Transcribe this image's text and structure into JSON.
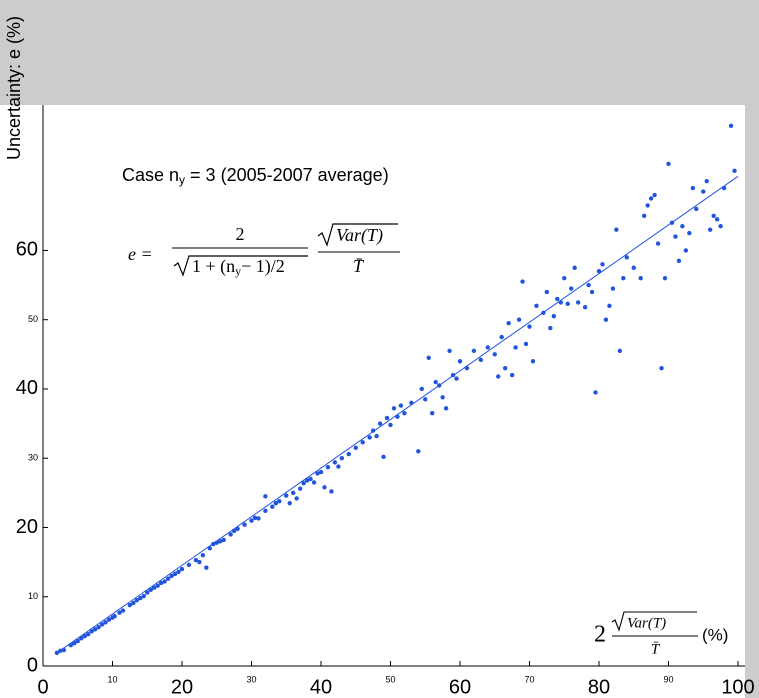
{
  "chart_data": {
    "type": "scatter",
    "ylabel": "Uncertainty: e (%)",
    "case_label": [
      "Case n",
      "y",
      " = 3 (2005-2007 average)"
    ],
    "formula": {
      "lhs": "e =",
      "num": "2",
      "den": [
        "1 + (n",
        "y",
        "− 1)/2"
      ],
      "var": "Var(T)",
      "mean": "T̄"
    },
    "xlabel": {
      "coef": "2",
      "var": "Var(T)",
      "mean": "T̄",
      "unit": "(%)"
    },
    "color": "#2255dd",
    "xlim": [
      0,
      100
    ],
    "ylim": [
      0,
      81
    ],
    "xticks": [
      0,
      10,
      20,
      30,
      40,
      50,
      60,
      70,
      80,
      90,
      100
    ],
    "yticks": [
      0,
      10,
      20,
      30,
      40,
      50,
      60
    ],
    "fit": {
      "x": [
        2,
        100
      ],
      "y": [
        1.9,
        70.7
      ]
    },
    "x": [
      2,
      2.5,
      3,
      4,
      4.5,
      5,
      5.5,
      6,
      6.5,
      7,
      7.5,
      8,
      8.5,
      9,
      9.5,
      10,
      10.3,
      11,
      11.5,
      12.5,
      13,
      13.5,
      14,
      14.5,
      15,
      15.5,
      16,
      16.5,
      17,
      17.5,
      18,
      18.5,
      19,
      19.5,
      20,
      21,
      22,
      22.5,
      23,
      23.5,
      24,
      24.5,
      25,
      25.5,
      26,
      27,
      27.5,
      28,
      29,
      30,
      30.5,
      31,
      32,
      32,
      33,
      33.5,
      34,
      35,
      35.5,
      36,
      36.5,
      37,
      37.5,
      38,
      38.5,
      39,
      39.5,
      40,
      40.5,
      41,
      41.5,
      42,
      42.5,
      43,
      44,
      45,
      46,
      47,
      47.5,
      48,
      48.5,
      49,
      49.5,
      50,
      50.5,
      51,
      51.5,
      52,
      53,
      54,
      54.5,
      55,
      55.5,
      56,
      56.5,
      57,
      57.5,
      58,
      58.5,
      59,
      59.5,
      60,
      61,
      62,
      63,
      64,
      65,
      65.5,
      66,
      66.5,
      67,
      67.5,
      68,
      68.5,
      69,
      69.5,
      70,
      70.5,
      71,
      72,
      72.5,
      73,
      73.5,
      74,
      74.5,
      75,
      75.5,
      76,
      76.5,
      77,
      78,
      78.5,
      79,
      79.5,
      80,
      80.5,
      81,
      81.5,
      82,
      82.5,
      83,
      83.5,
      84,
      85,
      86,
      86.5,
      87,
      87.5,
      88,
      88.5,
      89,
      89.5,
      90,
      90.5,
      91,
      91.5,
      92,
      92.5,
      93,
      93.5,
      94,
      95,
      95.5,
      96,
      96.5,
      97,
      97.5,
      98,
      99,
      99.5
    ],
    "y": [
      1.9,
      2.2,
      2.3,
      3.0,
      3.3,
      3.6,
      4.0,
      4.3,
      4.6,
      5.0,
      5.3,
      5.6,
      6.0,
      6.3,
      6.7,
      7.0,
      7.2,
      7.7,
      8.0,
      8.8,
      9.1,
      9.5,
      9.8,
      10.1,
      10.6,
      11.0,
      11.3,
      11.6,
      12.0,
      12.2,
      12.6,
      13.0,
      13.3,
      13.6,
      14.0,
      14.6,
      15.3,
      15.0,
      16.0,
      14.2,
      17.0,
      17.6,
      17.8,
      18.0,
      18.2,
      19.0,
      19.5,
      19.8,
      20.4,
      21.0,
      21.4,
      21.3,
      22.4,
      24.5,
      23.0,
      23.5,
      23.8,
      24.6,
      23.5,
      25.0,
      24.2,
      25.6,
      26.4,
      26.8,
      27.0,
      26.5,
      27.8,
      28.0,
      25.8,
      28.7,
      25.2,
      29.4,
      28.8,
      30.0,
      30.6,
      31.5,
      32.3,
      33.0,
      34.0,
      33.2,
      35.0,
      30.2,
      35.8,
      34.8,
      37.2,
      36.0,
      37.6,
      36.5,
      38.0,
      31.0,
      40.0,
      38.5,
      44.5,
      36.5,
      41.0,
      40.5,
      38.8,
      37.2,
      45.5,
      42.0,
      41.5,
      44.0,
      43.0,
      45.5,
      44.2,
      46.0,
      45.0,
      41.8,
      47.5,
      43.0,
      49.5,
      42.0,
      46.0,
      50.0,
      55.5,
      46.5,
      49.0,
      44.0,
      52.0,
      51.0,
      54.0,
      48.8,
      50.5,
      53.0,
      52.5,
      56.0,
      52.3,
      54.5,
      57.5,
      52.5,
      51.8,
      55.0,
      54.0,
      39.5,
      57.0,
      58.0,
      50.0,
      52.0,
      54.5,
      63.0,
      45.5,
      56.0,
      59.0,
      57.5,
      56.0,
      65.0,
      66.5,
      67.5,
      68.0,
      61.0,
      43.0,
      56.0,
      72.5,
      64.0,
      62.0,
      58.5,
      63.5,
      60.0,
      62.5,
      69.0,
      66.0,
      68.5,
      70.0,
      63.0,
      65.0,
      64.5,
      63.5,
      69.0,
      78.0,
      71.5
    ]
  }
}
